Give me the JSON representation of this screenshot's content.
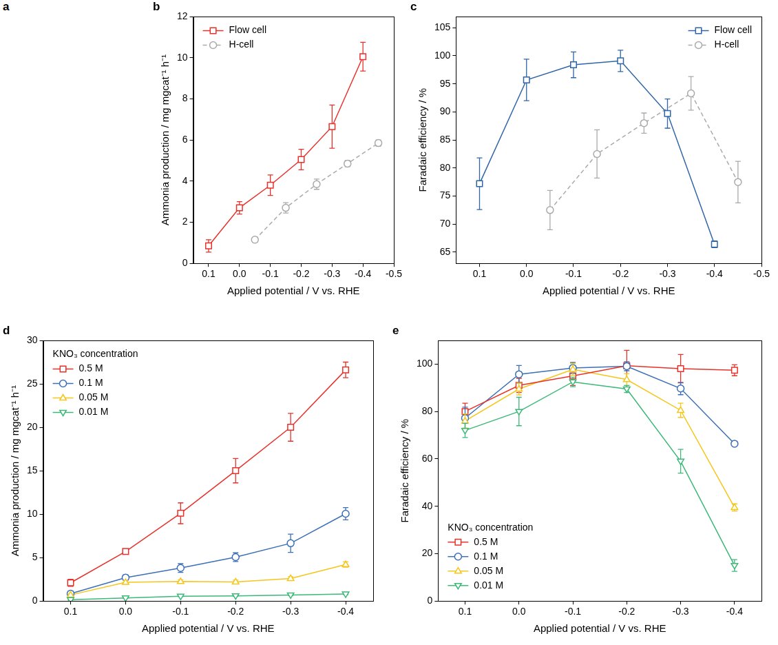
{
  "photo": {
    "panel": "a"
  },
  "chart_data": [
    {
      "panel": "b",
      "type": "line",
      "x_label": "Applied potential / V vs. RHE",
      "y_label": "Ammonia production / mg mgcat⁻¹ h⁻¹",
      "xlim": [
        0.15,
        -0.5
      ],
      "xticks": [
        0.1,
        {
          "value": 0,
          "label": "0.0"
        },
        -0.1,
        -0.2,
        -0.3,
        -0.4,
        -0.5
      ],
      "ylim": [
        0,
        12
      ],
      "yticks": [
        0,
        2,
        4,
        6,
        8,
        10,
        12
      ],
      "grid": false,
      "legend": "upper left",
      "series": [
        {
          "name": "Flow cell",
          "color": "#e8312a",
          "marker": "square",
          "line_style": "solid",
          "x": [
            0.1,
            0,
            -0.1,
            -0.2,
            -0.3,
            -0.4
          ],
          "values": [
            0.85,
            2.7,
            3.8,
            5.05,
            6.65,
            10.05
          ],
          "errors": [
            0.3,
            0.3,
            0.5,
            0.5,
            1.05,
            0.7
          ]
        },
        {
          "name": "H-cell",
          "color": "#aaaaaa",
          "marker": "circle",
          "line_style": "dashed",
          "x": [
            -0.05,
            -0.15,
            -0.25,
            -0.35,
            -0.45
          ],
          "values": [
            1.15,
            2.7,
            3.85,
            4.85,
            5.85
          ],
          "errors": [
            0.1,
            0.25,
            0.25,
            0.15,
            0.15
          ]
        }
      ]
    },
    {
      "panel": "c",
      "type": "line",
      "x_label": "Applied potential / V vs. RHE",
      "y_label": "Faradaic efficiency / %",
      "xlim": [
        0.15,
        -0.5
      ],
      "xticks": [
        0.1,
        {
          "value": 0,
          "label": "0.0"
        },
        -0.1,
        -0.2,
        -0.3,
        -0.4,
        -0.5
      ],
      "ylim": [
        63,
        107
      ],
      "yticks": [
        65,
        70,
        75,
        80,
        85,
        90,
        95,
        100,
        105
      ],
      "grid": false,
      "legend": "upper right",
      "series": [
        {
          "name": "Flow cell",
          "color": "#2e64a8",
          "marker": "square",
          "line_style": "solid",
          "x": [
            0.1,
            0,
            -0.1,
            -0.2,
            -0.3,
            -0.4
          ],
          "values": [
            77.2,
            95.7,
            98.4,
            99.1,
            89.7,
            66.4
          ],
          "errors": [
            4.6,
            3.7,
            2.3,
            1.9,
            2.6,
            0.6
          ]
        },
        {
          "name": "H-cell",
          "color": "#aaaaaa",
          "marker": "circle",
          "line_style": "dashed",
          "x": [
            -0.05,
            -0.15,
            -0.25,
            -0.35,
            -0.45
          ],
          "values": [
            72.5,
            82.5,
            88,
            93.3,
            77.5
          ],
          "errors": [
            3.5,
            4.3,
            1.8,
            3,
            3.7
          ]
        }
      ]
    },
    {
      "panel": "d",
      "type": "line",
      "x_label": "Applied potential / V vs. RHE",
      "y_label": "Ammonia production / mg mgcat⁻¹ h⁻¹",
      "legend_title": "KNO₃ concentration",
      "xlim": [
        0.15,
        -0.45
      ],
      "xticks": [
        0.1,
        {
          "value": 0,
          "label": "0.0"
        },
        -0.1,
        -0.2,
        -0.3,
        -0.4
      ],
      "ylim": [
        0,
        30
      ],
      "yticks": [
        0,
        5,
        10,
        15,
        20,
        25,
        30
      ],
      "grid": false,
      "legend": "upper left",
      "series": [
        {
          "name": "0.5 M",
          "color": "#e8312a",
          "marker": "square",
          "line_style": "solid",
          "x": [
            0.1,
            0,
            -0.1,
            -0.2,
            -0.3,
            -0.4
          ],
          "values": [
            2.1,
            5.7,
            10.1,
            15.0,
            20.0,
            26.6
          ],
          "errors": [
            0.4,
            0.3,
            1.2,
            1.4,
            1.6,
            0.9
          ]
        },
        {
          "name": "0.1 M",
          "color": "#3b6fb6",
          "marker": "circle",
          "line_style": "solid",
          "x": [
            0.1,
            0,
            -0.1,
            -0.2,
            -0.3,
            -0.4
          ],
          "values": [
            0.85,
            2.7,
            3.8,
            5.05,
            6.65,
            10.05
          ],
          "errors": [
            0.3,
            0.3,
            0.5,
            0.5,
            1.05,
            0.7
          ]
        },
        {
          "name": "0.05 M",
          "color": "#f5c518",
          "marker": "triangle",
          "line_style": "solid",
          "x": [
            0.1,
            0,
            -0.1,
            -0.2,
            -0.3,
            -0.4
          ],
          "values": [
            0.7,
            2.15,
            2.25,
            2.2,
            2.6,
            4.2
          ],
          "errors": [
            0.1,
            0.2,
            0.2,
            0.2,
            0.2,
            0.3
          ]
        },
        {
          "name": "0.01 M",
          "color": "#3cb878",
          "marker": "triangle_down",
          "line_style": "solid",
          "x": [
            0.1,
            0,
            -0.1,
            -0.2,
            -0.3,
            -0.4
          ],
          "values": [
            0.15,
            0.35,
            0.55,
            0.6,
            0.7,
            0.8
          ],
          "errors": [
            0.05,
            0.05,
            0.05,
            0.05,
            0.05,
            0.05
          ]
        }
      ]
    },
    {
      "panel": "e",
      "type": "line",
      "x_label": "Applied potential / V vs. RHE",
      "y_label": "Faradaic efficiency / %",
      "legend_title": "KNO₃ concentration",
      "xlim": [
        0.15,
        -0.45
      ],
      "xticks": [
        0.1,
        {
          "value": 0,
          "label": "0.0"
        },
        -0.1,
        -0.2,
        -0.3,
        -0.4
      ],
      "ylim": [
        0,
        110
      ],
      "yticks": [
        0,
        20,
        40,
        60,
        80,
        100
      ],
      "grid": false,
      "legend": "lower left",
      "series": [
        {
          "name": "0.5 M",
          "color": "#e8312a",
          "marker": "square",
          "line_style": "solid",
          "x": [
            0.1,
            0,
            -0.1,
            -0.2,
            -0.3,
            -0.4
          ],
          "values": [
            80,
            91,
            95,
            99.3,
            98.1,
            97.4
          ],
          "errors": [
            3.5,
            3,
            4,
            6.5,
            6,
            2.3
          ]
        },
        {
          "name": "0.1 M",
          "color": "#3b6fb6",
          "marker": "circle",
          "line_style": "solid",
          "x": [
            0.1,
            0,
            -0.1,
            -0.2,
            -0.3,
            -0.4
          ],
          "values": [
            77.2,
            95.7,
            98.4,
            99.1,
            89.7,
            66.4
          ],
          "errors": [
            4.6,
            3.7,
            2.3,
            1.9,
            2.6,
            0.6
          ]
        },
        {
          "name": "0.05 M",
          "color": "#f5c518",
          "marker": "triangle",
          "line_style": "solid",
          "x": [
            0.1,
            0,
            -0.1,
            -0.2,
            -0.3,
            -0.4
          ],
          "values": [
            76,
            89.5,
            97.8,
            93.5,
            80.5,
            39.5
          ],
          "errors": [
            3,
            2.5,
            2.5,
            2.5,
            3,
            1.5
          ]
        },
        {
          "name": "0.01 M",
          "color": "#3cb878",
          "marker": "triangle_down",
          "line_style": "solid",
          "x": [
            0.1,
            0,
            -0.1,
            -0.2,
            -0.3,
            -0.4
          ],
          "values": [
            72,
            80,
            92.5,
            89.5,
            59,
            15
          ],
          "errors": [
            3,
            6,
            2,
            1.5,
            5,
            2.5
          ]
        }
      ]
    }
  ]
}
